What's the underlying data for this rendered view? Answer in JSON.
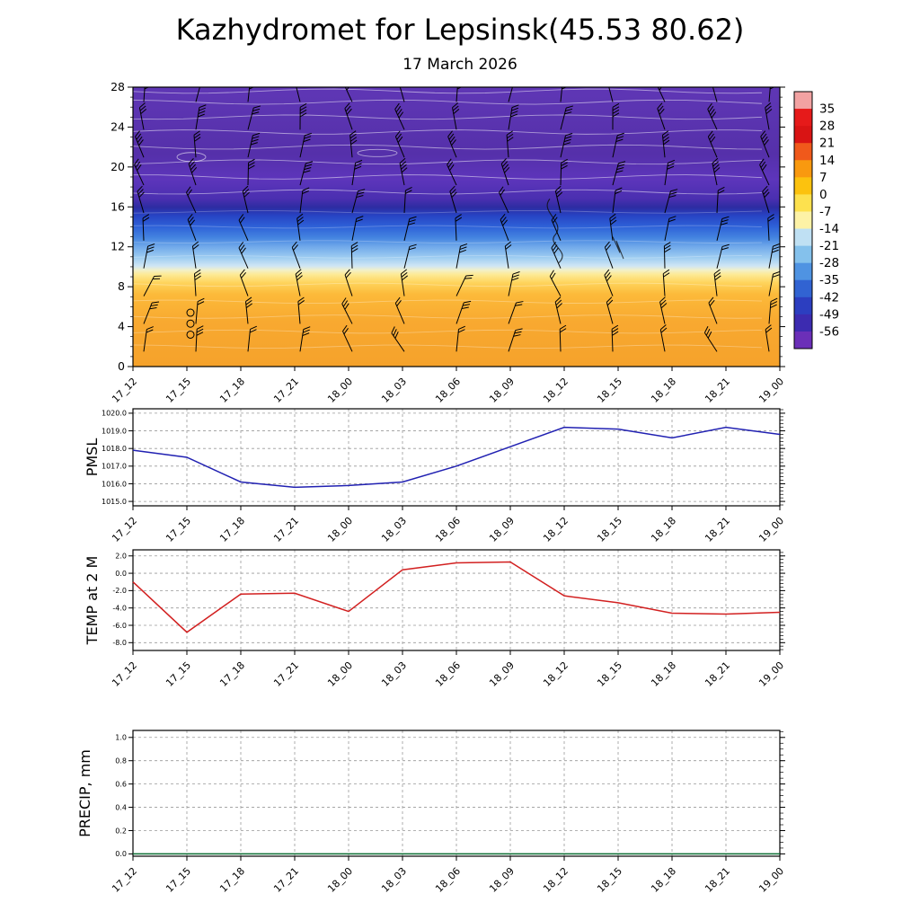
{
  "title": "Kazhydromet for Lepsinsk(45.53 80.62)",
  "subtitle": "17 March 2026",
  "time_labels": [
    "17_12",
    "17_15",
    "17_18",
    "17_21",
    "18_00",
    "18_03",
    "18_06",
    "18_09",
    "18_12",
    "18_15",
    "18_18",
    "18_21",
    "19_00"
  ],
  "chart_data": [
    {
      "id": "temp-cross-section",
      "type": "heatmap",
      "description": "Time-height temperature cross-section with wind barbs and white contour lines",
      "ylim": [
        0,
        28
      ],
      "y_ticks": [
        0,
        4,
        8,
        12,
        16,
        20,
        24,
        28
      ],
      "colorbar": {
        "ticks": [
          35,
          28,
          21,
          14,
          7,
          0,
          -7,
          -14,
          -21,
          -28,
          -35,
          -42,
          -49,
          -56
        ],
        "colors": [
          "#f2a2a2",
          "#e61a1a",
          "#d91414",
          "#f0591b",
          "#f9990f",
          "#fcc20e",
          "#fde14e",
          "#fdf2a6",
          "#bfe0f3",
          "#84c1ec",
          "#4f93e2",
          "#3163d2",
          "#2c3ec0",
          "#3c2bb0",
          "#6b2fb8"
        ]
      },
      "gradient_stops": [
        [
          "0%",
          "#5f37b5"
        ],
        [
          "24%",
          "#5530aa"
        ],
        [
          "33%",
          "#5d35bb"
        ],
        [
          "40%",
          "#4a2fb0"
        ],
        [
          "43%",
          "#2d2ca2"
        ],
        [
          "46%",
          "#2744c4"
        ],
        [
          "50%",
          "#2e62d8"
        ],
        [
          "54%",
          "#4585e0"
        ],
        [
          "57%",
          "#6fa8ea"
        ],
        [
          "61%",
          "#9ecdf1"
        ],
        [
          "64%",
          "#cfe6f4"
        ],
        [
          "65.5%",
          "#f2f0c8"
        ],
        [
          "67%",
          "#fdea96"
        ],
        [
          "70%",
          "#fed45c"
        ],
        [
          "74%",
          "#fcba3a"
        ],
        [
          "84%",
          "#f8a930"
        ],
        [
          "100%",
          "#f5a22b"
        ]
      ],
      "wind_barbs": true,
      "calm_circle_heights": [
        3.2,
        4.3,
        5.4
      ]
    },
    {
      "id": "pmsl",
      "type": "line",
      "ylabel": "PMSL",
      "line_color": "#2121b2",
      "ylim": [
        1014.75,
        1020.25
      ],
      "y_ticks": [
        1020.0,
        1019.0,
        1018.0,
        1017.0,
        1016.0,
        1015.0
      ],
      "minor_step": 0.2,
      "values": [
        1017.9,
        1017.5,
        1016.1,
        1015.8,
        1015.9,
        1016.1,
        1017.0,
        1018.1,
        1019.2,
        1019.1,
        1018.6,
        1019.2,
        1018.8
      ]
    },
    {
      "id": "temp-2m",
      "type": "line",
      "ylabel": "TEMP at 2 M",
      "line_color": "#d22020",
      "ylim": [
        -8.9,
        2.7
      ],
      "y_ticks": [
        2.0,
        0.0,
        -2.0,
        -4.0,
        -6.0,
        -8.0
      ],
      "minor_step": 0.4,
      "values": [
        -1.0,
        -6.8,
        -2.4,
        -2.3,
        -4.4,
        0.4,
        1.2,
        1.3,
        -2.6,
        -3.4,
        -4.6,
        -4.7,
        -4.5
      ]
    },
    {
      "id": "precip",
      "type": "line",
      "ylabel": "PRECIP, mm",
      "line_color": "#0b6e33",
      "ylim": [
        -0.02,
        1.06
      ],
      "y_ticks": [
        1.0,
        0.8,
        0.6,
        0.4,
        0.2,
        0.0
      ],
      "minor_step": 0.05,
      "values": [
        0,
        0,
        0,
        0,
        0,
        0,
        0,
        0,
        0,
        0,
        0,
        0,
        0
      ]
    }
  ]
}
